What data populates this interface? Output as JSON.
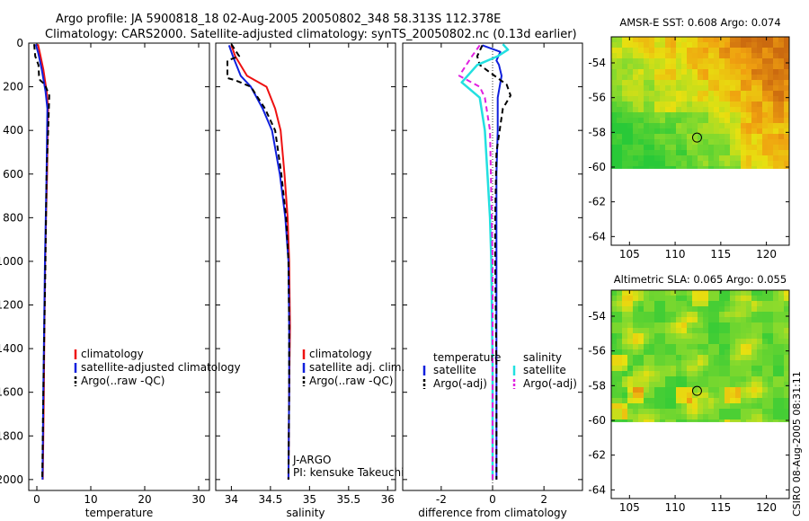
{
  "header": {
    "line1": "Argo profile: JA 5900818_18 02-Aug-2005 20050802_348 58.313S 112.378E",
    "line2": "Climatology: CARS2000. Satellite-adjusted climatology: synTS_20050802.nc (0.13d earlier)"
  },
  "side_stamp": "CSIRO 08-Aug-2005 08:31:11",
  "colors": {
    "red": "#ee1111",
    "blue": "#1020dd",
    "black": "#000000",
    "cyan": "#22e0e0",
    "magenta": "#e020e0"
  },
  "chart_data": [
    {
      "type": "line",
      "id": "temperature",
      "xlabel": "temperature",
      "ylabel": "",
      "xlim": [
        -1.5,
        32
      ],
      "ylim": [
        2050,
        0
      ],
      "xticks": [
        0,
        10,
        20,
        30
      ],
      "xtick_labels": [
        "0",
        "10",
        "20",
        "30"
      ],
      "yticks": [
        0,
        200,
        400,
        600,
        800,
        1000,
        1200,
        1400,
        1600,
        1800,
        2000
      ],
      "ytick_labels": [
        "0",
        "200",
        "400",
        "600",
        "800",
        "1000",
        "1200",
        "1400",
        "1600",
        "1800",
        "2000"
      ],
      "legend": [
        "climatology",
        "satellite-adjusted climatology",
        "Argo(..raw -QC)"
      ],
      "series": [
        {
          "name": "climatology",
          "color": "#ee1111",
          "dash": "",
          "x": [
            0.2,
            0.6,
            1.2,
            1.8,
            2.1,
            2.0,
            1.9,
            1.7,
            1.55,
            1.4,
            1.3,
            1.1
          ],
          "y": [
            5,
            50,
            120,
            220,
            300,
            400,
            600,
            800,
            1000,
            1300,
            1600,
            2000
          ]
        },
        {
          "name": "satellite-adjusted climatology",
          "color": "#1020dd",
          "dash": "",
          "x": [
            -0.2,
            0.3,
            0.9,
            1.6,
            1.95,
            1.9,
            1.8,
            1.65,
            1.5,
            1.35,
            1.2,
            1.05
          ],
          "y": [
            5,
            50,
            120,
            220,
            300,
            400,
            600,
            800,
            1000,
            1300,
            1600,
            2000
          ]
        },
        {
          "name": "Argo(..raw -QC)",
          "color": "#000000",
          "dash": "6,4",
          "x": [
            -0.5,
            -0.3,
            0.3,
            0.4,
            0.6,
            1.5,
            2.3,
            2.1,
            1.8,
            1.6,
            1.4,
            1.2,
            1.0
          ],
          "y": [
            5,
            60,
            100,
            150,
            170,
            190,
            240,
            400,
            600,
            1000,
            1300,
            1600,
            2000
          ]
        }
      ]
    },
    {
      "type": "line",
      "id": "salinity",
      "xlabel": "salinity",
      "ylabel": "",
      "xlim": [
        33.8,
        36.1
      ],
      "ylim": [
        2050,
        0
      ],
      "xticks": [
        34,
        34.5,
        35,
        35.5,
        36
      ],
      "xtick_labels": [
        "34",
        "34.5",
        "35",
        "35.5",
        "36"
      ],
      "legend": [
        "climatology",
        "satellite adj. clim.",
        "Argo(..raw -QC)"
      ],
      "annotations": [
        "J-ARGO",
        "PI: kensuke Takeuchi"
      ],
      "series": [
        {
          "name": "climatology",
          "color": "#ee1111",
          "dash": "",
          "x": [
            34.0,
            34.05,
            34.2,
            34.45,
            34.56,
            34.63,
            34.68,
            34.72,
            34.74,
            34.75,
            34.74,
            34.73
          ],
          "y": [
            10,
            60,
            150,
            200,
            300,
            400,
            600,
            800,
            1000,
            1300,
            1600,
            2000
          ]
        },
        {
          "name": "satellite adj. clim.",
          "color": "#1020dd",
          "dash": "",
          "x": [
            33.97,
            34.02,
            34.12,
            34.25,
            34.4,
            34.52,
            34.62,
            34.69,
            34.73,
            34.74,
            34.74,
            34.73
          ],
          "y": [
            10,
            60,
            150,
            200,
            300,
            400,
            600,
            800,
            1000,
            1300,
            1600,
            2000
          ]
        },
        {
          "name": "Argo(..raw -QC)",
          "color": "#000000",
          "dash": "6,4",
          "x": [
            34.0,
            34.1,
            33.95,
            33.95,
            34.05,
            34.25,
            34.43,
            34.56,
            34.64,
            34.7,
            34.73,
            34.74,
            34.74,
            34.73
          ],
          "y": [
            5,
            60,
            80,
            160,
            170,
            200,
            300,
            400,
            600,
            800,
            1000,
            1300,
            1600,
            2000
          ]
        }
      ]
    },
    {
      "type": "line",
      "id": "difference",
      "xlabel": "difference from climatology",
      "ylabel": "",
      "xlim": [
        -3.5,
        3.5
      ],
      "ylim": [
        2050,
        0
      ],
      "xticks": [
        -2,
        0,
        2
      ],
      "xtick_labels": [
        "-2",
        "0",
        "2"
      ],
      "legend_cols": [
        {
          "header": "temperature",
          "items": [
            "satellite",
            "Argo(-adj)"
          ]
        },
        {
          "header": "salinity",
          "items": [
            "satellite",
            "Argo(-adj)"
          ]
        }
      ],
      "series": [
        {
          "name": "temperature satellite",
          "color": "#1020dd",
          "dash": "",
          "x": [
            -0.4,
            0.3,
            0.15,
            0.25,
            0.35,
            0.2,
            0.2,
            0.15,
            0.15,
            0.15,
            0.15
          ],
          "y": [
            10,
            40,
            80,
            100,
            150,
            250,
            400,
            600,
            1000,
            1500,
            2000
          ]
        },
        {
          "name": "temperature Argo(-adj)",
          "color": "#000000",
          "dash": "6,4",
          "x": [
            -0.4,
            -0.6,
            -0.5,
            0.2,
            0.55,
            0.7,
            0.4,
            0.15,
            0.1,
            0.1,
            0.15,
            0.15
          ],
          "y": [
            10,
            60,
            100,
            160,
            190,
            240,
            300,
            500,
            800,
            1000,
            1500,
            2000
          ]
        },
        {
          "name": "salinity satellite",
          "color": "#22e0e0",
          "dash": "",
          "x": [
            0.4,
            0.6,
            0.2,
            -0.6,
            -1.2,
            -0.5,
            -0.3,
            -0.2,
            -0.1,
            -0.05,
            0.0,
            0.0
          ],
          "y": [
            5,
            30,
            60,
            100,
            180,
            250,
            400,
            600,
            800,
            1000,
            1500,
            2000
          ]
        },
        {
          "name": "salinity Argo(-adj)",
          "color": "#e020e0",
          "dash": "6,4",
          "x": [
            -0.5,
            -0.8,
            -1.3,
            -0.5,
            -0.3,
            -0.1,
            0.0,
            0.0
          ],
          "y": [
            10,
            60,
            150,
            200,
            250,
            400,
            1000,
            2000
          ]
        }
      ]
    },
    {
      "type": "heatmap",
      "id": "sst_map",
      "title": "AMSR-E SST: 0.608 Argo: 0.074",
      "xlim": [
        103,
        122.5
      ],
      "ylim": [
        -64.5,
        -52.5
      ],
      "xticks": [
        105,
        110,
        115,
        120
      ],
      "xtick_labels": [
        "105",
        "110",
        "115",
        "120"
      ],
      "yticks": [
        -54,
        -56,
        -58,
        -60,
        -62,
        -64
      ],
      "ytick_labels": [
        "-54",
        "-56",
        "-58",
        "-60",
        "-62",
        "-64"
      ],
      "data_lat_range": [
        -60.1,
        -52.5
      ],
      "float_position": {
        "lon": 112.4,
        "lat": -58.3
      }
    },
    {
      "type": "heatmap",
      "id": "sla_map",
      "title": "Altimetric SLA: 0.065 Argo: 0.055",
      "xlim": [
        103,
        122.5
      ],
      "ylim": [
        -64.5,
        -52.5
      ],
      "xticks": [
        105,
        110,
        115,
        120
      ],
      "xtick_labels": [
        "105",
        "110",
        "115",
        "120"
      ],
      "yticks": [
        -54,
        -56,
        -58,
        -60,
        -62,
        -64
      ],
      "ytick_labels": [
        "-54",
        "-56",
        "-58",
        "-60",
        "-62",
        "-64"
      ],
      "data_lat_range": [
        -60.1,
        -52.5
      ],
      "float_position": {
        "lon": 112.4,
        "lat": -58.3
      }
    }
  ]
}
